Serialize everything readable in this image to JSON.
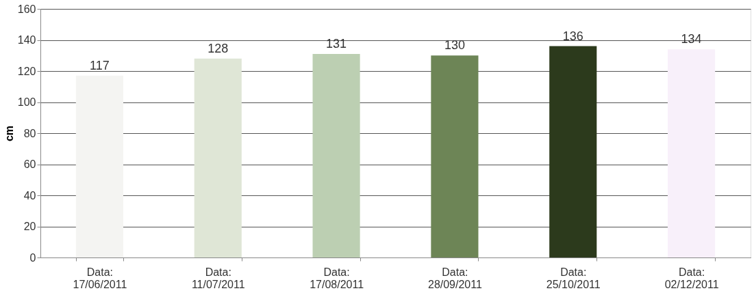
{
  "chart_data": {
    "type": "bar",
    "ylabel": "cm",
    "categories": [
      "Data:\n17/06/2011",
      "Data:\n11/07/2011",
      "Data:\n17/08/2011",
      "Data:\n28/09/2011",
      "Data:\n25/10/2011",
      "Data:\n02/12/2011"
    ],
    "values": [
      117,
      128,
      131,
      130,
      136,
      134
    ],
    "colors": [
      "#f4f4f2",
      "#dfe6d6",
      "#bccfb2",
      "#6d8556",
      "#2c3a1c",
      "#f8f0fa"
    ],
    "ylim": [
      0,
      160
    ],
    "yticks": [
      0,
      20,
      40,
      60,
      80,
      100,
      120,
      140,
      160
    ],
    "grid": "y",
    "data_labels": true
  }
}
